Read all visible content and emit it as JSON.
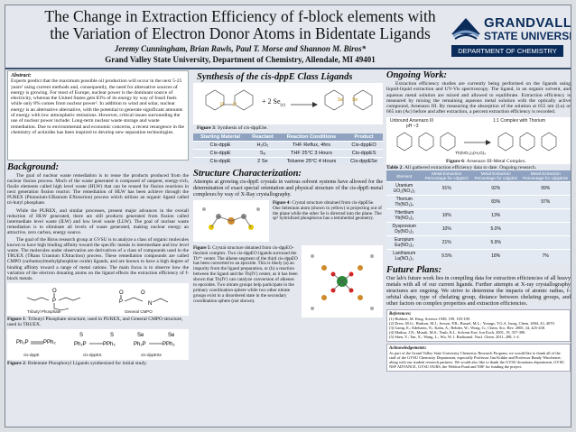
{
  "header": {
    "title": "The Change in Extraction Efficiency of f-block elements with the Variation of Electron Donor Atoms in Bidentate Ligands",
    "authors": "Jeremy Cunningham, Brian Rawls, Paul T. Morse and Shannon M. Biros*",
    "affiliation": "Grand Valley State University, Department of Chemistry, Allendale, MI 49401",
    "logo_line1": "GRANDVALLEY",
    "logo_line2": "STATE UNIVERSITY",
    "logo_dept": "DEPARTMENT OF CHEMISTRY"
  },
  "abstract": {
    "heading": "Abstract:",
    "text": "Experts predict that the maximum possible oil production will occur in the next 5-25 years¹ using current methods and, consequently, the need for alternative sources of energy is growing. For most of Europe, nuclear power is the dominant source of electricity, whereas the United States gets 83% of its energy by way of fossil fuels while only 8% comes from nuclear power². In addition to wind and solar, nuclear energy is an alternative alternative, with the potential to generate significant amounts of energy with low atmospheric emissions. However, critical issues surrounding the use of nuclear power include: Long-term nuclear waste storage and waste remediation. Due to environmental and economic concerns, a recent resurgence in the chemistry of actinides has been inspired to develop new separation technologies."
  },
  "background": {
    "heading": "Background:",
    "p1": "The goal of nuclear waste remediation is to reuse the products produced from the nuclear fission process. Much of the waste generated is composed of unspent, energy-rich, fissile elements called high level waste (HLW) that can be reused for fission reactions in next generation fission reactor. The remediation of HLW has been achieve through the PUREX (Plutonium-URanium EXtraction) process which utilizes an organic ligand called tri-butyl phosphate.",
    "p2": "While the PUREX, and similar processes, present major advances in the overall reduction of HLW generated, there are still products generated from fission called intermediate level waste (ILW) and low level waste (LLW). The goal of nuclear waste remediation is to eliminate all levels of waste generated, making nuclear energy an attractive, zero carbon, energy source.",
    "p3": "The goal of the Biros research group at GVSU is to analyze a class of organic molecules known to have high binding affinity toward the specific metals in intermediate and low level waste. The molecules under observation are derivatives of a class of compounds used in the TRUEX (TRans Uranium EXtraction) process. These remediation compounds are called CMPO (carbamoylmethylphosphine oxide) ligands, and are known to have a high degree of binding affinity toward a range of metal cations. The main focus is to observe how the variation of the electron donating atoms on the ligand effects the extraction efficiency of f-block metals.",
    "chem_tbp": "Tributyl Phosphate",
    "chem_cmpo": "General CMPO",
    "fig1_label": "Figure 1",
    "fig1_text": ": Tributyl Phosphate structure, used in PUREX, and General CMPO structure, used in TRUEX.",
    "chem_a": "cis-dppE",
    "chem_b": "cis-dppES",
    "chem_c": "cis-dppESe",
    "fig2_label": "Figure 2",
    "fig2_text": ": Bidentate Phosphoryl Ligands synthesized for initial study."
  },
  "synthesis": {
    "heading": "Synthesis of the cis-dppE Class Ligands",
    "reagent": "+ 2 Se",
    "fig3_label": "Figure 3",
    "fig3_text": ": Synthesis of cis-dppESe.",
    "table_headers": [
      "Starting Material",
      "Reactant",
      "Reaction Conditions",
      "Product"
    ],
    "table_rows": [
      [
        "Cis-dppE",
        "H₂O₂",
        "THF Reflux, 4hrs",
        "Cis-dppEO"
      ],
      [
        "Cis-dppE",
        "S₈",
        "THF 25°C 3 Hours",
        "Cis-dppES"
      ],
      [
        "Cis-dppE",
        "2 Se",
        "Toluene 25°C 4 Hours",
        "Cis-dppESe"
      ]
    ]
  },
  "structure": {
    "heading": "Structure Characterization:",
    "text": "Attempts at growing cis-dppE crystals in various solvent systems have allowed for the determination of exact special orientation and physical structure of the cis-dppE-metal complexes by way of X-Ray crystallography.",
    "fig4_label": "Figure 4",
    "fig4_text": ": Crystal structure obtained from cis-dppESe. One Selenium atom (shown in yellow) is projecting out of the plane while the other Se is directed into the plane. The sp³ hybridized phosphorus has a tetrahedral geometry.",
    "fig5_label": "Figure 5",
    "fig5_text": ": Crystal structure obtained from cis-dppEO-thorium complex. Two cis-dppEO ligands surround the Th⁴⁺ center. The alkene segment of the third cis-dppEO has been converted to an epoxide. This is likely (a) an impurity from the ligand preparation, or (b) a reaction between the ligand and the Th(IV) center, as it has been shown that Th(IV) can catalyze conversion of alkenes to epoxides. Two nitrate groups help participate in the primary coordination sphere while two other nitrate groups exist in a disordered state in the secondary coordination sphere (not shown)."
  },
  "ongoing": {
    "heading": "Ongoing Work:",
    "text": "Extraction efficiency studies are currently being performed on the ligands using liquid-liquid extraction and UV-Vis spectroscopy. The ligand, in an organic solvent, and aqueous metal solution are mixed and allowed to equilibrate. Extraction efficiency is measured by mixing the remaining aqueous metal solution with the optically active compound, Arsenazo III. By measuring the absorption of the solution at 655 nm (Lu) or 665 nm (Ac) before and after extraction, a percent extraction efficiency is recorded.",
    "chem_left": "Unbound Arsenazo III",
    "chem_left_sub": "pH ~3",
    "chem_right": "1:1 Complex with Thorium",
    "chem_th": "Th(NO₃)₄(H₂O)₄",
    "fig6_label": "Figure 6",
    "fig6_text": ": Arsenazo III-Metal Complex.",
    "table2_label": "Table 2",
    "table2_text": ": All gathered extraction efficiency data to date. Ongoing research.",
    "table2_headers": [
      "Element",
      "Metal Extraction Percentage for cdppEO",
      "Metal Extraction Percentage for cdppES",
      "Metal Extraction Percentage for cdppESe"
    ],
    "table2_rows": [
      [
        "Uranium UO₂(NO₃)₂",
        "91%",
        "92%",
        "99%"
      ],
      [
        "Thorium Th(NO₃)₄",
        "",
        "83%",
        "97%"
      ],
      [
        "Ytterbium Yb(NO₃)₃",
        "10%",
        "13%",
        ""
      ],
      [
        "Dysprosium Dy(NO₃)₃",
        "10%",
        "5.0%",
        ""
      ],
      [
        "Europium Eu(NO₃)₃",
        "21%",
        "5.9%",
        ""
      ],
      [
        "Lanthanum La(NO₃)₃",
        "9.5%",
        "18%",
        "7%"
      ]
    ]
  },
  "future": {
    "heading": "Future Plans:",
    "text": "Our lab's future work lies in compiling data for extraction efficiencies of all heavy metals with all of our current ligands. Further attempts at X-ray crystallography structures are ongoing. We strive to determine the impacts of atomic radius, f-orbital shape, type of chelating group, distance between chelating groups, and other factors on complex properties and extraction efficiencies."
  },
  "references": {
    "heading": "References:",
    "items": [
      "(1) Hubbert, M. King. Science 1949, 109, 103-109.",
      "(2) Drew, M.G.; Hudson, M.J.; Iveson, P.B.; Russel, M.L.; Youngs, T.G.A. Inorg. Chem. 2004, 43, 4070.",
      "(3) Gamp, E.; Edelstein, N.; Kahn, A.; Rehder, W.; Wong, G.; Chem. Soc. Rev. 2005, 34, 425-438.",
      "(4) Mathur, J.N.; Murali, M.S.; Nash, K.L. Solvent Extr. Ion Exch. 2001, 19, 357-390.",
      "(5) Shen, Y.; Tan, X.; Wang, L.; Wu, W. J. Radioanal. Nucl. Chem. 2011, 288, 1-4."
    ]
  },
  "ack": {
    "heading": "Acknowledgements:",
    "text": "As part of the Grand Valley State University Chemistry Research Program, we would like to thank all of the staff of the GVSU Chemistry Department, especially Professor Jim Krikke and Professor Randy Winchester, along with our student research partners. We would also like to thank the GVSU donations department, GVSU NSF ADVANCE, GVSU OURS, the Weldon Fund and NSF for funding the project."
  },
  "colors": {
    "accent": "#0b2c5b",
    "table_head": "#8fa3c1",
    "panel_bg": "#e4e8ee"
  }
}
